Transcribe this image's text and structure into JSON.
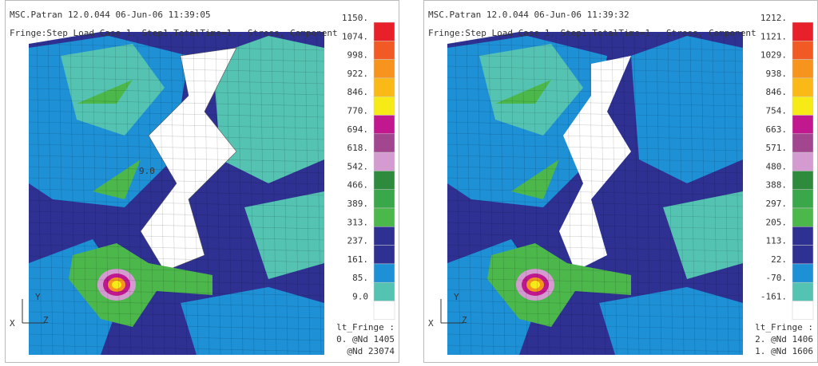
{
  "panels": [
    {
      "header": [
        "MSC.Patran 12.0.044 06-Jun-06 11:39:05",
        "Fringe:Step Load Case 1, Step1,TotalTime=1., Stress, Component"
      ],
      "legend": [
        "1150.",
        "1074.",
        "998.",
        "922.",
        "846.",
        "770.",
        "694.",
        "618.",
        "542.",
        "466.",
        "389.",
        "313.",
        "237.",
        "161.",
        "85.",
        "9.0"
      ],
      "annotation": "9.0",
      "axis": [
        "Y",
        "X",
        "Z"
      ],
      "footer": [
        "lt_Fringe :",
        "0. @Nd 1405",
        "@Nd 23074"
      ]
    },
    {
      "header": [
        "MSC.Patran 12.0.044 06-Jun-06 11:39:32",
        "Fringe:Step Load Case 1, Step1,TotalTime=1., Stress, Component"
      ],
      "legend": [
        "1212.",
        "1121.",
        "1029.",
        "938.",
        "846.",
        "754.",
        "663.",
        "571.",
        "480.",
        "388.",
        "297.",
        "205.",
        "113.",
        "22.",
        "-70.",
        "-161."
      ],
      "axis": [
        "Y",
        "X",
        "Z"
      ],
      "footer": [
        "lt_Fringe :",
        "2. @Nd 1406",
        "1. @Nd 1606"
      ]
    }
  ]
}
